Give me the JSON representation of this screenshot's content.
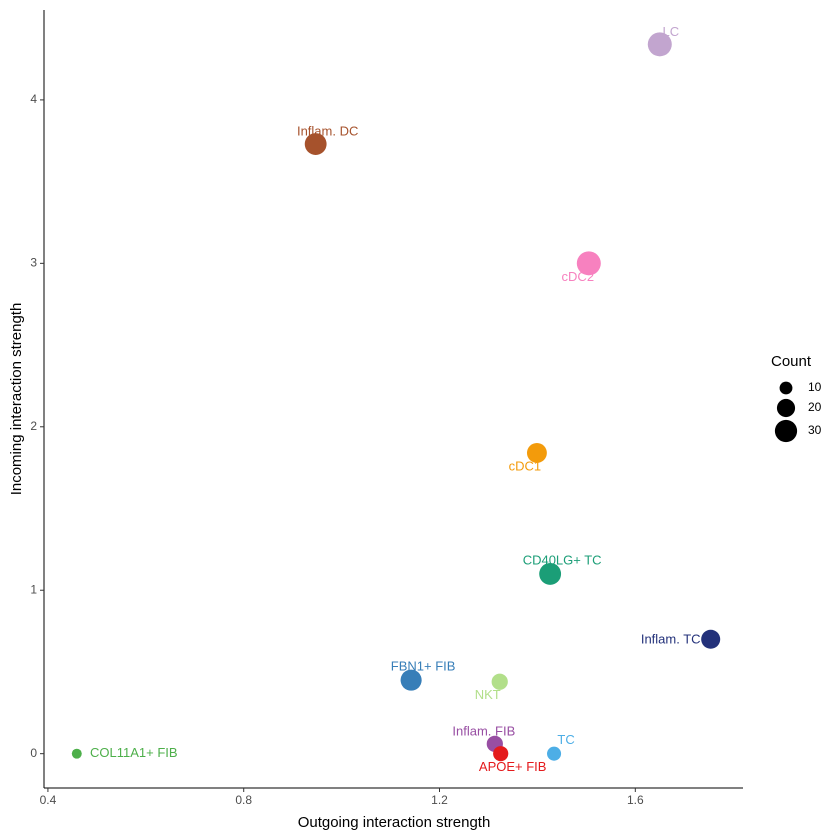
{
  "chart_data": {
    "type": "scatter",
    "x_label": "Outgoing interaction strength",
    "y_label": "Incoming interaction strength",
    "labels": [
      "LC",
      "Inflam. DC",
      "cDC2",
      "cDC1",
      "CD40LG+ TC",
      "Inflam. TC",
      "FBN1+ FIB",
      "NKT",
      "Inflam. FIB",
      "APOE+ FIB",
      "TC",
      "COL11A1+ FIB"
    ],
    "colors": [
      "#c2a5cf",
      "#a6522c",
      "#f781bf",
      "#f39b0b",
      "#1b9e77",
      "#23317a",
      "#377eb8",
      "#b2df8a",
      "#984ea3",
      "#e41a1c",
      "#4daee6",
      "#4daf4a"
    ],
    "x": [
      1.65,
      0.947,
      1.505,
      1.399,
      1.426,
      1.754,
      1.142,
      1.323,
      1.313,
      1.325,
      1.434,
      0.459
    ],
    "values": [
      4.34,
      3.73,
      3.0,
      1.84,
      1.1,
      0.7,
      0.45,
      0.44,
      0.06,
      0.0,
      0.0,
      0.0
    ],
    "sizes": [
      35,
      29,
      35,
      24,
      29,
      22,
      27,
      16,
      16,
      14,
      12,
      6
    ],
    "xlim": [
      0.392,
      1.82
    ],
    "ylim": [
      -0.21,
      4.55
    ],
    "xticks": [
      0.4,
      0.8,
      1.2,
      1.6
    ],
    "yticks": [
      0,
      1,
      2,
      3,
      4
    ],
    "size_legend": {
      "title": "Count",
      "values": [
        10,
        20,
        30
      ]
    }
  }
}
